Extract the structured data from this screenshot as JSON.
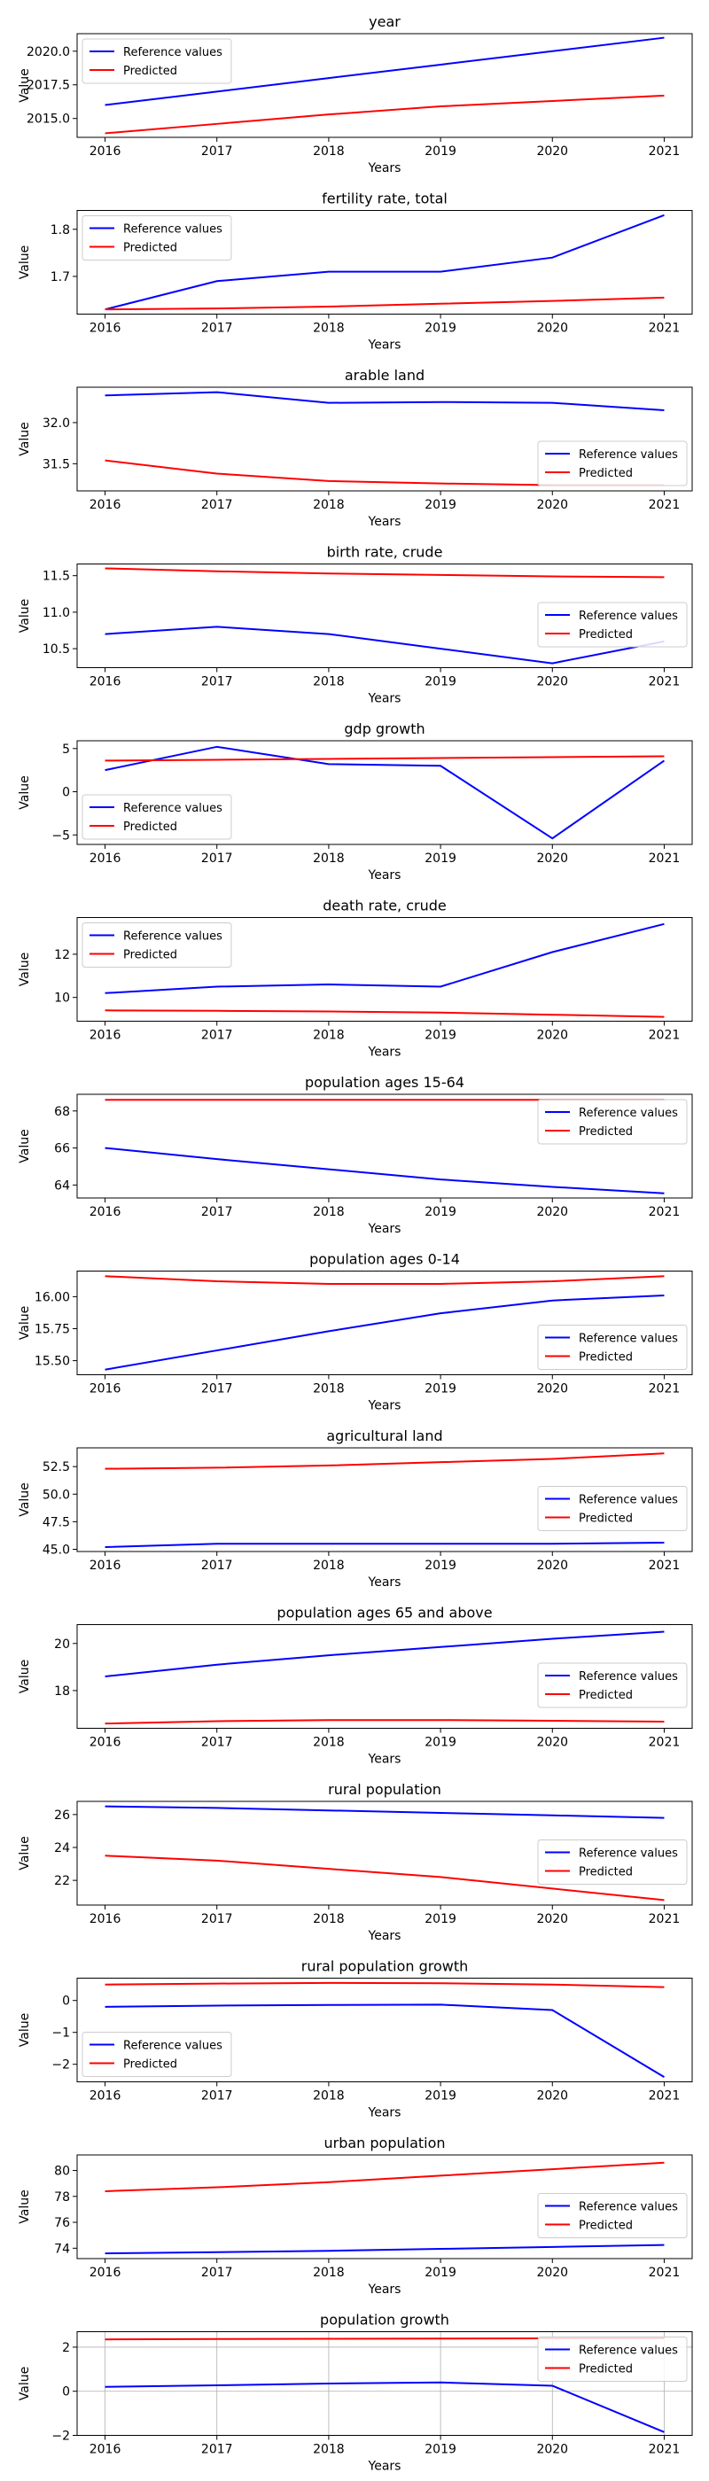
{
  "chart_data": [
    {
      "type": "line",
      "title": "year",
      "xlabel": "Years",
      "ylabel": "Value",
      "x": [
        2016,
        2017,
        2018,
        2019,
        2020,
        2021
      ],
      "yticks": [
        2015.0,
        2017.5,
        2020.0
      ],
      "ytick_labels": [
        "2015.0",
        "2017.5",
        "2020.0"
      ],
      "ylim": [
        2013.6,
        2021.3
      ],
      "grid": false,
      "legend": "upper left",
      "series": [
        {
          "name": "Reference values",
          "color": "#0000ff",
          "values": [
            2016,
            2017,
            2018,
            2019,
            2020,
            2021
          ]
        },
        {
          "name": "Predicted",
          "color": "#ff0000",
          "values": [
            2013.9,
            2014.6,
            2015.3,
            2015.9,
            2016.3,
            2016.7
          ]
        }
      ]
    },
    {
      "type": "line",
      "title": "fertility rate, total",
      "xlabel": "Years",
      "ylabel": "Value",
      "x": [
        2016,
        2017,
        2018,
        2019,
        2020,
        2021
      ],
      "yticks": [
        1.7,
        1.8
      ],
      "ytick_labels": [
        "1.7",
        "1.8"
      ],
      "ylim": [
        1.62,
        1.84
      ],
      "grid": false,
      "legend": "upper left",
      "series": [
        {
          "name": "Reference values",
          "color": "#0000ff",
          "values": [
            1.63,
            1.69,
            1.71,
            1.71,
            1.74,
            1.83
          ]
        },
        {
          "name": "Predicted",
          "color": "#ff0000",
          "values": [
            1.63,
            1.632,
            1.636,
            1.642,
            1.648,
            1.655
          ]
        }
      ]
    },
    {
      "type": "line",
      "title": "arable land",
      "xlabel": "Years",
      "ylabel": "Value",
      "x": [
        2016,
        2017,
        2018,
        2019,
        2020,
        2021
      ],
      "yticks": [
        31.5,
        32.0
      ],
      "ytick_labels": [
        "31.5",
        "32.0"
      ],
      "ylim": [
        31.17,
        32.43
      ],
      "grid": false,
      "legend": "lower right",
      "series": [
        {
          "name": "Reference values",
          "color": "#0000ff",
          "values": [
            32.33,
            32.37,
            32.24,
            32.25,
            32.24,
            32.15
          ]
        },
        {
          "name": "Predicted",
          "color": "#ff0000",
          "values": [
            31.54,
            31.38,
            31.29,
            31.26,
            31.24,
            31.24
          ]
        }
      ]
    },
    {
      "type": "line",
      "title": "birth rate, crude",
      "xlabel": "Years",
      "ylabel": "Value",
      "x": [
        2016,
        2017,
        2018,
        2019,
        2020,
        2021
      ],
      "yticks": [
        10.5,
        11.0,
        11.5
      ],
      "ytick_labels": [
        "10.5",
        "11.0",
        "11.5"
      ],
      "ylim": [
        10.24,
        11.66
      ],
      "grid": false,
      "legend": "center right",
      "series": [
        {
          "name": "Reference values",
          "color": "#0000ff",
          "values": [
            10.7,
            10.8,
            10.7,
            10.5,
            10.3,
            10.6
          ]
        },
        {
          "name": "Predicted",
          "color": "#ff0000",
          "values": [
            11.6,
            11.56,
            11.53,
            11.51,
            11.49,
            11.48
          ]
        }
      ]
    },
    {
      "type": "line",
      "title": "gdp growth",
      "xlabel": "Years",
      "ylabel": "Value",
      "x": [
        2016,
        2017,
        2018,
        2019,
        2020,
        2021
      ],
      "yticks": [
        -5,
        0,
        5
      ],
      "ytick_labels": [
        "−5",
        "0",
        "5"
      ],
      "ylim": [
        -6.1,
        5.9
      ],
      "grid": false,
      "legend": "lower left",
      "series": [
        {
          "name": "Reference values",
          "color": "#0000ff",
          "values": [
            2.5,
            5.2,
            3.2,
            3.0,
            -5.4,
            3.6
          ]
        },
        {
          "name": "Predicted",
          "color": "#ff0000",
          "values": [
            3.6,
            3.7,
            3.8,
            3.9,
            4.0,
            4.1
          ]
        }
      ]
    },
    {
      "type": "line",
      "title": "death rate, crude",
      "xlabel": "Years",
      "ylabel": "Value",
      "x": [
        2016,
        2017,
        2018,
        2019,
        2020,
        2021
      ],
      "yticks": [
        10,
        12
      ],
      "ytick_labels": [
        "10",
        "12"
      ],
      "ylim": [
        8.9,
        13.7
      ],
      "grid": false,
      "legend": "upper left",
      "series": [
        {
          "name": "Reference values",
          "color": "#0000ff",
          "values": [
            10.2,
            10.5,
            10.6,
            10.5,
            12.1,
            13.4
          ]
        },
        {
          "name": "Predicted",
          "color": "#ff0000",
          "values": [
            9.4,
            9.38,
            9.35,
            9.3,
            9.2,
            9.1
          ]
        }
      ]
    },
    {
      "type": "line",
      "title": "population ages 15-64",
      "xlabel": "Years",
      "ylabel": "Value",
      "x": [
        2016,
        2017,
        2018,
        2019,
        2020,
        2021
      ],
      "yticks": [
        64,
        66,
        68
      ],
      "ytick_labels": [
        "64",
        "66",
        "68"
      ],
      "ylim": [
        63.3,
        68.9
      ],
      "grid": false,
      "legend": "upper right",
      "series": [
        {
          "name": "Reference values",
          "color": "#0000ff",
          "values": [
            66.0,
            65.4,
            64.85,
            64.3,
            63.9,
            63.55
          ]
        },
        {
          "name": "Predicted",
          "color": "#ff0000",
          "values": [
            68.6,
            68.6,
            68.6,
            68.6,
            68.6,
            68.6
          ]
        }
      ]
    },
    {
      "type": "line",
      "title": "population ages 0-14",
      "xlabel": "Years",
      "ylabel": "Value",
      "x": [
        2016,
        2017,
        2018,
        2019,
        2020,
        2021
      ],
      "yticks": [
        15.5,
        15.75,
        16.0
      ],
      "ytick_labels": [
        "15.50",
        "15.75",
        "16.00"
      ],
      "ylim": [
        15.39,
        16.2
      ],
      "grid": false,
      "legend": "lower right",
      "series": [
        {
          "name": "Reference values",
          "color": "#0000ff",
          "values": [
            15.43,
            15.58,
            15.73,
            15.87,
            15.97,
            16.01
          ]
        },
        {
          "name": "Predicted",
          "color": "#ff0000",
          "values": [
            16.16,
            16.12,
            16.1,
            16.1,
            16.12,
            16.16
          ]
        }
      ]
    },
    {
      "type": "line",
      "title": "agricultural land",
      "xlabel": "Years",
      "ylabel": "Value",
      "x": [
        2016,
        2017,
        2018,
        2019,
        2020,
        2021
      ],
      "yticks": [
        45.0,
        47.5,
        50.0,
        52.5
      ],
      "ytick_labels": [
        "45.0",
        "47.5",
        "50.0",
        "52.5"
      ],
      "ylim": [
        44.8,
        54.2
      ],
      "grid": false,
      "legend": "center right",
      "series": [
        {
          "name": "Reference values",
          "color": "#0000ff",
          "values": [
            45.2,
            45.5,
            45.5,
            45.5,
            45.5,
            45.6
          ]
        },
        {
          "name": "Predicted",
          "color": "#ff0000",
          "values": [
            52.3,
            52.4,
            52.6,
            52.9,
            53.2,
            53.7
          ]
        }
      ]
    },
    {
      "type": "line",
      "title": "population ages 65 and above",
      "xlabel": "Years",
      "ylabel": "Value",
      "x": [
        2016,
        2017,
        2018,
        2019,
        2020,
        2021
      ],
      "yticks": [
        18,
        20
      ],
      "ytick_labels": [
        "18",
        "20"
      ],
      "ylim": [
        16.4,
        20.8
      ],
      "grid": false,
      "legend": "center right",
      "series": [
        {
          "name": "Reference values",
          "color": "#0000ff",
          "values": [
            18.6,
            19.1,
            19.5,
            19.85,
            20.2,
            20.5
          ]
        },
        {
          "name": "Predicted",
          "color": "#ff0000",
          "values": [
            16.6,
            16.7,
            16.75,
            16.75,
            16.72,
            16.68
          ]
        }
      ]
    },
    {
      "type": "line",
      "title": "rural population",
      "xlabel": "Years",
      "ylabel": "Value",
      "x": [
        2016,
        2017,
        2018,
        2019,
        2020,
        2021
      ],
      "yticks": [
        22,
        24,
        26
      ],
      "ytick_labels": [
        "22",
        "24",
        "26"
      ],
      "ylim": [
        20.5,
        26.8
      ],
      "grid": false,
      "legend": "center right",
      "series": [
        {
          "name": "Reference values",
          "color": "#0000ff",
          "values": [
            26.5,
            26.4,
            26.25,
            26.1,
            25.95,
            25.8
          ]
        },
        {
          "name": "Predicted",
          "color": "#ff0000",
          "values": [
            23.5,
            23.2,
            22.7,
            22.2,
            21.5,
            20.8
          ]
        }
      ]
    },
    {
      "type": "line",
      "title": "rural population growth",
      "xlabel": "Years",
      "ylabel": "Value",
      "x": [
        2016,
        2017,
        2018,
        2019,
        2020,
        2021
      ],
      "yticks": [
        -2,
        -1,
        0
      ],
      "ytick_labels": [
        "−2",
        "−1",
        "0"
      ],
      "ylim": [
        -2.55,
        0.7
      ],
      "grid": false,
      "legend": "lower left",
      "series": [
        {
          "name": "Reference values",
          "color": "#0000ff",
          "values": [
            -0.2,
            -0.16,
            -0.14,
            -0.13,
            -0.3,
            -2.4
          ]
        },
        {
          "name": "Predicted",
          "color": "#ff0000",
          "values": [
            0.5,
            0.53,
            0.55,
            0.54,
            0.5,
            0.42
          ]
        }
      ]
    },
    {
      "type": "line",
      "title": "urban population",
      "xlabel": "Years",
      "ylabel": "Value",
      "x": [
        2016,
        2017,
        2018,
        2019,
        2020,
        2021
      ],
      "yticks": [
        74,
        76,
        78,
        80
      ],
      "ytick_labels": [
        "74",
        "76",
        "78",
        "80"
      ],
      "ylim": [
        73.2,
        81.2
      ],
      "grid": false,
      "legend": "center right",
      "series": [
        {
          "name": "Reference values",
          "color": "#0000ff",
          "values": [
            73.6,
            73.7,
            73.8,
            73.95,
            74.1,
            74.25
          ]
        },
        {
          "name": "Predicted",
          "color": "#ff0000",
          "values": [
            78.4,
            78.7,
            79.1,
            79.6,
            80.1,
            80.6
          ]
        }
      ]
    },
    {
      "type": "line",
      "title": "population growth",
      "xlabel": "Years",
      "ylabel": "Value",
      "x": [
        2016,
        2017,
        2018,
        2019,
        2020,
        2021
      ],
      "yticks": [
        -2,
        0,
        2
      ],
      "ytick_labels": [
        "−2",
        "0",
        "2"
      ],
      "ylim": [
        -2.0,
        2.7
      ],
      "grid": true,
      "legend": "upper right",
      "series": [
        {
          "name": "Reference values",
          "color": "#0000ff",
          "values": [
            0.2,
            0.27,
            0.35,
            0.4,
            0.25,
            -1.85
          ]
        },
        {
          "name": "Predicted",
          "color": "#ff0000",
          "values": [
            2.35,
            2.37,
            2.38,
            2.39,
            2.4,
            2.4
          ]
        }
      ]
    }
  ]
}
